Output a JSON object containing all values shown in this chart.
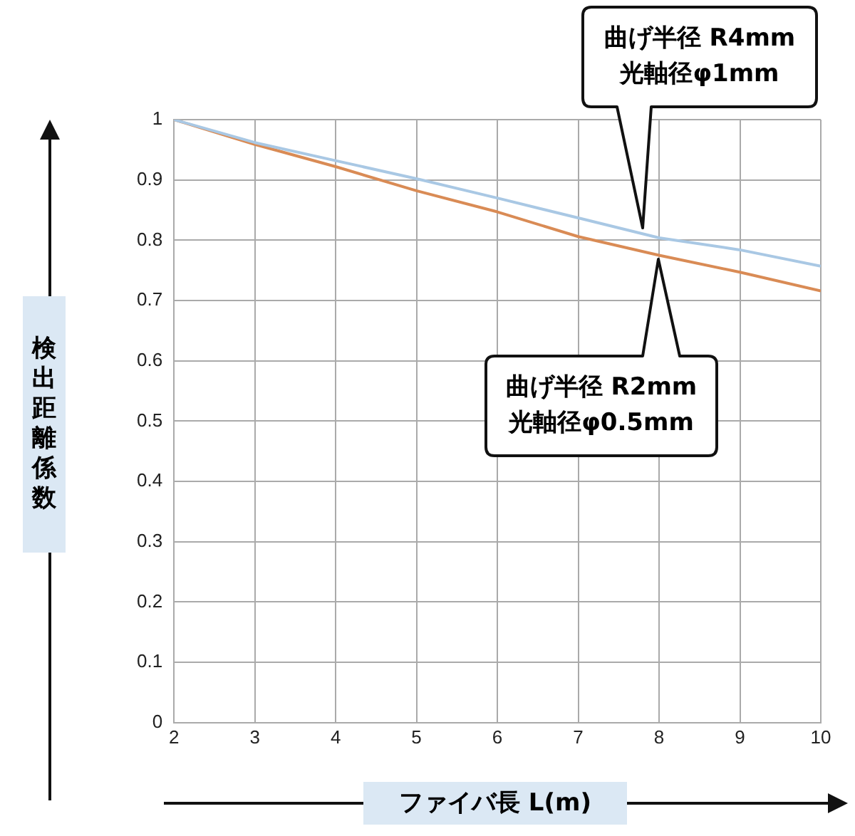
{
  "chart_data": {
    "type": "line",
    "xlabel": "ファイバ長 L(m)",
    "ylabel": "検出距離係数",
    "x": [
      2,
      3,
      4,
      5,
      6,
      7,
      8,
      9,
      10
    ],
    "series": [
      {
        "color": "#a9c8e4",
        "values": [
          1,
          0.962,
          0.932,
          0.902,
          0.87,
          0.837,
          0.804,
          0.784,
          0.757
        ]
      },
      {
        "color": "#d98b55",
        "values": [
          1,
          0.959,
          0.922,
          0.882,
          0.847,
          0.806,
          0.775,
          0.747,
          0.716
        ]
      }
    ],
    "xlim": [
      2,
      10
    ],
    "xticks": [
      2,
      3,
      4,
      5,
      6,
      7,
      8,
      9,
      10
    ],
    "ylim": [
      0,
      1
    ],
    "yticks": [
      0,
      0.1,
      0.2,
      0.3,
      0.4,
      0.5,
      0.6,
      0.7,
      0.8,
      0.9,
      1
    ],
    "grid": true,
    "legend": false,
    "marker": "none",
    "line_style": "solid",
    "annotations": [
      "曲げ半径 R4mm\n光軸径φ1mm",
      "曲げ半径 R2mm\n光軸径φ0.5mm"
    ]
  }
}
